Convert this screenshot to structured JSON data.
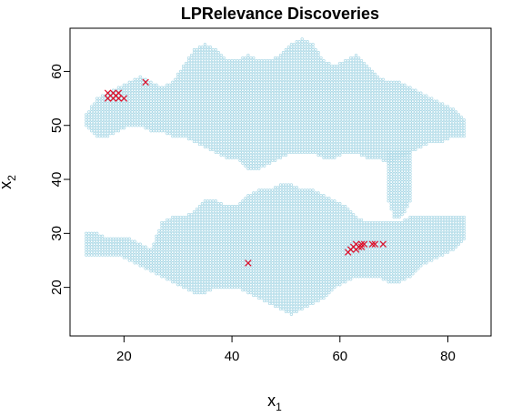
{
  "chart_data": {
    "type": "scatter",
    "title": "LPRelevance Discoveries",
    "xlabel": {
      "main": "x",
      "sub": "1"
    },
    "ylabel": {
      "main": "x",
      "sub": "2"
    },
    "xlim": [
      10,
      88
    ],
    "ylim": [
      11,
      68
    ],
    "xticks": [
      20,
      40,
      60,
      80
    ],
    "yticks": [
      20,
      30,
      40,
      50,
      60
    ],
    "grid": false,
    "legend": "none",
    "background_colors": {
      "cloud": "#aad8e6",
      "discovery": "#e8001c"
    },
    "series": [
      {
        "marker": "dot",
        "color": "#aad8e6",
        "regions": {
          "top_band": {
            "x_range": [
              13,
              84
            ],
            "step": 1,
            "envelope": [
              [
                13,
                50,
                52
              ],
              [
                15,
                48,
                55
              ],
              [
                17,
                48,
                56
              ],
              [
                19,
                49,
                57
              ],
              [
                21,
                50,
                58
              ],
              [
                23,
                50,
                59
              ],
              [
                25,
                49,
                58
              ],
              [
                27,
                49,
                57
              ],
              [
                29,
                48,
                58
              ],
              [
                31,
                48,
                61
              ],
              [
                33,
                47,
                64
              ],
              [
                35,
                46,
                65
              ],
              [
                37,
                45,
                64
              ],
              [
                39,
                44,
                62
              ],
              [
                41,
                44,
                62
              ],
              [
                43,
                42,
                63
              ],
              [
                45,
                42,
                62
              ],
              [
                47,
                43,
                62
              ],
              [
                49,
                44,
                63
              ],
              [
                51,
                45,
                65
              ],
              [
                53,
                45,
                66
              ],
              [
                55,
                45,
                65
              ],
              [
                57,
                44,
                62
              ],
              [
                59,
                44,
                61
              ],
              [
                61,
                45,
                62
              ],
              [
                63,
                45,
                63
              ],
              [
                65,
                44,
                61
              ],
              [
                67,
                44,
                59
              ],
              [
                69,
                43,
                58
              ],
              [
                71,
                44,
                58
              ],
              [
                73,
                45,
                57
              ],
              [
                75,
                46,
                56
              ],
              [
                77,
                47,
                55
              ],
              [
                79,
                47,
                54
              ],
              [
                81,
                48,
                53
              ],
              [
                83,
                48,
                51
              ]
            ]
          },
          "neck": {
            "x_range": [
              69,
              73
            ],
            "step": 1,
            "envelope": [
              [
                69,
                36,
                45
              ],
              [
                70,
                33,
                45
              ],
              [
                71,
                33,
                45
              ],
              [
                72,
                34,
                45
              ],
              [
                73,
                36,
                45
              ]
            ]
          },
          "bottom_band": {
            "x_range": [
              12,
              85
            ],
            "step": 1,
            "envelope": [
              [
                13,
                26,
                30
              ],
              [
                15,
                26,
                30
              ],
              [
                17,
                26,
                29
              ],
              [
                19,
                26,
                29
              ],
              [
                21,
                25,
                29
              ],
              [
                23,
                24,
                28
              ],
              [
                25,
                23,
                27
              ],
              [
                27,
                22,
                32
              ],
              [
                29,
                21,
                33
              ],
              [
                31,
                20,
                33
              ],
              [
                33,
                19,
                34
              ],
              [
                35,
                19,
                36
              ],
              [
                37,
                20,
                36
              ],
              [
                39,
                20,
                35
              ],
              [
                41,
                20,
                35
              ],
              [
                43,
                19,
                37
              ],
              [
                45,
                18,
                38
              ],
              [
                47,
                17,
                38
              ],
              [
                49,
                16,
                39
              ],
              [
                51,
                15,
                39
              ],
              [
                53,
                16,
                38
              ],
              [
                55,
                17,
                38
              ],
              [
                57,
                18,
                37
              ],
              [
                59,
                20,
                36
              ],
              [
                61,
                21,
                35
              ],
              [
                63,
                22,
                33
              ],
              [
                65,
                22,
                32
              ],
              [
                67,
                22,
                32
              ],
              [
                69,
                21,
                32
              ],
              [
                71,
                21,
                32
              ],
              [
                73,
                22,
                33
              ],
              [
                75,
                24,
                33
              ],
              [
                77,
                25,
                33
              ],
              [
                79,
                26,
                33
              ],
              [
                81,
                27,
                33
              ],
              [
                83,
                29,
                33
              ]
            ]
          }
        }
      },
      {
        "marker": "x",
        "color": "#e8001c",
        "points": [
          [
            17,
            55
          ],
          [
            17,
            56
          ],
          [
            18,
            55
          ],
          [
            18,
            56
          ],
          [
            18.5,
            55.5
          ],
          [
            19,
            55
          ],
          [
            19,
            56
          ],
          [
            20,
            55
          ],
          [
            24,
            58
          ],
          [
            43,
            24.5
          ],
          [
            61.5,
            26.5
          ],
          [
            62,
            27
          ],
          [
            62.5,
            27.5
          ],
          [
            63,
            28
          ],
          [
            63,
            27
          ],
          [
            63.5,
            27.5
          ],
          [
            64,
            28
          ],
          [
            64,
            27.5
          ],
          [
            64.5,
            28
          ],
          [
            66,
            28
          ],
          [
            66.5,
            28
          ],
          [
            68,
            28
          ]
        ]
      }
    ]
  }
}
